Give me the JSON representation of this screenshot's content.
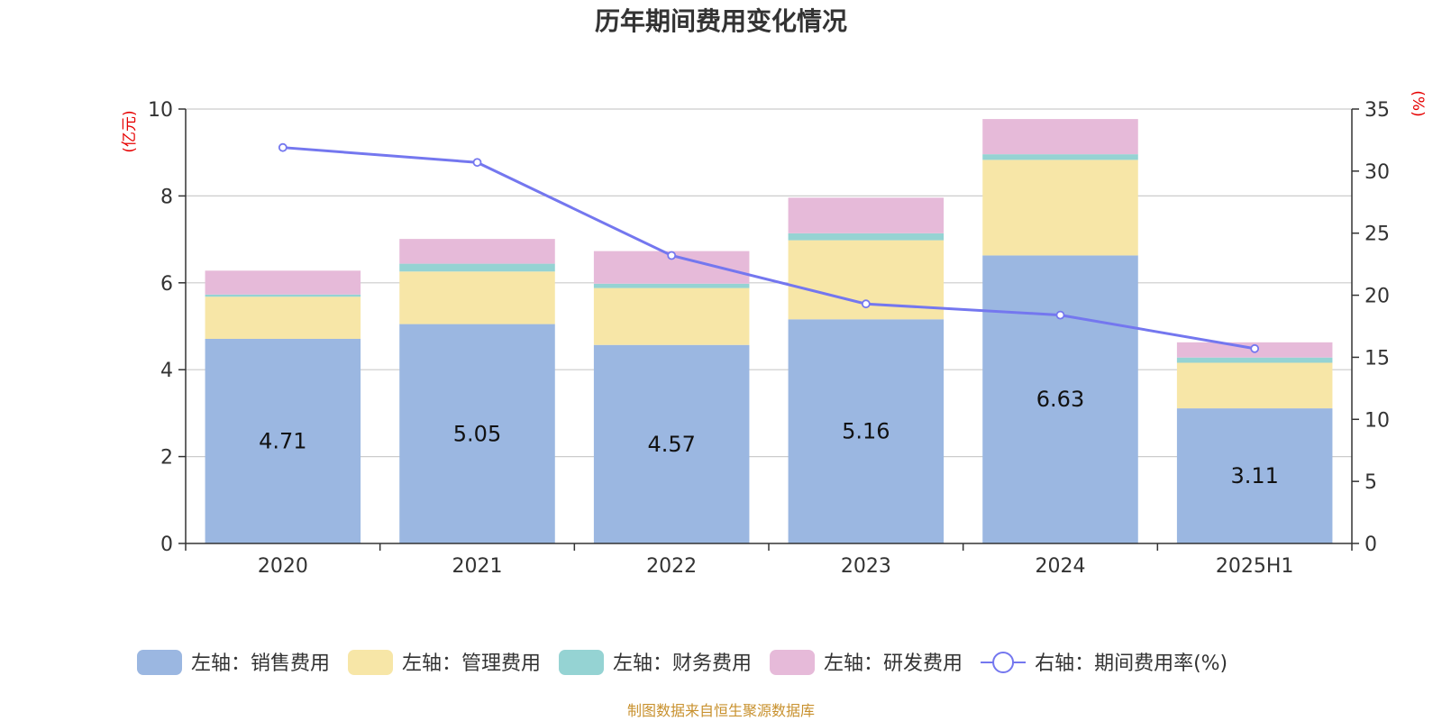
{
  "title": "历年期间费用变化情况",
  "source_note": "制图数据来自恒生聚源数据库",
  "colors": {
    "sales": "#9bb7e1",
    "admin": "#f7e6a7",
    "finance": "#95d3d3",
    "rd": "#e6bad9",
    "rate": "#7477ef"
  },
  "chart_data": {
    "type": "bar",
    "stacked": true,
    "categories": [
      "2020",
      "2021",
      "2022",
      "2023",
      "2024",
      "2025H1"
    ],
    "left_axis": {
      "unit_label": "(亿元)",
      "ylim": [
        0,
        10
      ],
      "ticks": [
        0,
        2,
        4,
        6,
        8,
        10
      ]
    },
    "right_axis": {
      "unit_label": "(%)",
      "ylim": [
        0,
        35
      ],
      "ticks": [
        0,
        5,
        10,
        15,
        20,
        25,
        30,
        35
      ]
    },
    "series": [
      {
        "name": "左轴：销售费用",
        "key": "sales",
        "axis": "left",
        "values": [
          4.71,
          5.05,
          4.57,
          5.16,
          6.63,
          3.11
        ],
        "show_labels": true
      },
      {
        "name": "左轴：管理费用",
        "key": "admin",
        "axis": "left",
        "values": [
          0.97,
          1.21,
          1.31,
          1.82,
          2.2,
          1.05
        ]
      },
      {
        "name": "左轴：财务费用",
        "key": "finance",
        "axis": "left",
        "values": [
          0.05,
          0.18,
          0.1,
          0.16,
          0.13,
          0.12
        ]
      },
      {
        "name": "左轴：研发费用",
        "key": "rd",
        "axis": "left",
        "values": [
          0.55,
          0.57,
          0.75,
          0.82,
          0.81,
          0.35
        ]
      },
      {
        "name": "右轴：期间费用率(%)",
        "key": "rate",
        "axis": "right",
        "type": "line",
        "values": [
          31.9,
          30.7,
          23.2,
          19.3,
          18.4,
          15.7
        ]
      }
    ],
    "grid": true,
    "legend_position": "bottom"
  }
}
